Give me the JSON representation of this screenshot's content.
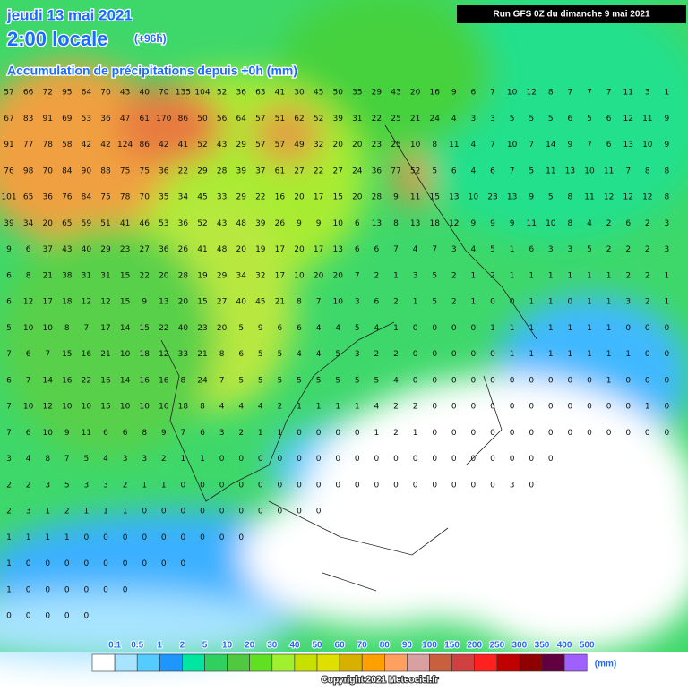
{
  "header": {
    "date": "jeudi 13 mai 2021",
    "time": "2:00 locale",
    "lead": "(+96h)",
    "subtitle": "Accumulation de précipitations depuis +0h (mm)",
    "run": "Run GFS 0Z du dimanche 9 mai 2021"
  },
  "grid_rows": [
    [
      57,
      66,
      72,
      95,
      64,
      70,
      43,
      40,
      70,
      135,
      104,
      52,
      36,
      63,
      41,
      30,
      45,
      50,
      35,
      29,
      43,
      20,
      16,
      9,
      6,
      7,
      10,
      12,
      8,
      7,
      7,
      7,
      11,
      3,
      1
    ],
    [
      67,
      83,
      91,
      69,
      53,
      36,
      47,
      61,
      170,
      86,
      50,
      56,
      64,
      57,
      51,
      62,
      52,
      39,
      31,
      22,
      25,
      21,
      24,
      4,
      3,
      3,
      5,
      5,
      5,
      6,
      5,
      6,
      12,
      11,
      9
    ],
    [
      91,
      77,
      78,
      58,
      42,
      42,
      124,
      86,
      42,
      41,
      52,
      43,
      29,
      57,
      57,
      49,
      32,
      20,
      20,
      23,
      25,
      10,
      8,
      11,
      4,
      7,
      10,
      7,
      14,
      9,
      7,
      6,
      13,
      10,
      9
    ],
    [
      76,
      98,
      70,
      84,
      90,
      88,
      75,
      75,
      36,
      22,
      29,
      28,
      39,
      37,
      61,
      27,
      22,
      27,
      24,
      36,
      77,
      52,
      5,
      6,
      4,
      6,
      7,
      5,
      11,
      13,
      10,
      11,
      7,
      8,
      8
    ],
    [
      101,
      65,
      36,
      76,
      84,
      75,
      78,
      70,
      35,
      34,
      45,
      33,
      29,
      22,
      16,
      20,
      17,
      15,
      20,
      28,
      9,
      11,
      15,
      13,
      10,
      23,
      13,
      9,
      5,
      8,
      11,
      12,
      12,
      12,
      8
    ],
    [
      39,
      34,
      20,
      65,
      59,
      51,
      41,
      46,
      53,
      36,
      52,
      43,
      48,
      39,
      26,
      9,
      9,
      10,
      6,
      13,
      8,
      13,
      18,
      12,
      9,
      9,
      9,
      11,
      10,
      8,
      4,
      2,
      6,
      2,
      3
    ],
    [
      9,
      6,
      37,
      43,
      40,
      29,
      23,
      27,
      36,
      26,
      41,
      48,
      20,
      19,
      17,
      20,
      17,
      13,
      6,
      6,
      7,
      4,
      7,
      3,
      4,
      5,
      1,
      6,
      3,
      3,
      5,
      2,
      2,
      2,
      3
    ],
    [
      6,
      8,
      21,
      38,
      31,
      31,
      15,
      22,
      20,
      28,
      19,
      29,
      34,
      32,
      17,
      10,
      20,
      20,
      7,
      2,
      1,
      3,
      5,
      2,
      1,
      2,
      1,
      1,
      1,
      1,
      1,
      1,
      2,
      2,
      1
    ],
    [
      6,
      12,
      17,
      18,
      12,
      12,
      15,
      9,
      13,
      20,
      15,
      27,
      40,
      45,
      21,
      8,
      7,
      10,
      3,
      6,
      2,
      1,
      5,
      2,
      1,
      0,
      0,
      1,
      1,
      0,
      1,
      1,
      3,
      2,
      1
    ],
    [
      5,
      10,
      10,
      8,
      7,
      17,
      14,
      15,
      22,
      40,
      23,
      20,
      5,
      9,
      6,
      6,
      4,
      4,
      5,
      4,
      1,
      0,
      0,
      0,
      0,
      1,
      1,
      1,
      1,
      1,
      1,
      1,
      0,
      0,
      0
    ],
    [
      7,
      6,
      7,
      15,
      16,
      21,
      10,
      18,
      12,
      33,
      21,
      8,
      6,
      5,
      5,
      4,
      4,
      5,
      3,
      2,
      2,
      0,
      0,
      0,
      0,
      0,
      1,
      1,
      1,
      1,
      1,
      1,
      1,
      0,
      0
    ],
    [
      6,
      7,
      14,
      16,
      22,
      16,
      14,
      16,
      16,
      8,
      24,
      7,
      5,
      5,
      5,
      5,
      5,
      5,
      5,
      5,
      4,
      0,
      0,
      0,
      0,
      0,
      0,
      0,
      0,
      0,
      0,
      1,
      0,
      0,
      0
    ],
    [
      7,
      10,
      12,
      10,
      10,
      15,
      10,
      10,
      16,
      18,
      8,
      4,
      4,
      4,
      2,
      1,
      1,
      1,
      1,
      4,
      2,
      2,
      0,
      0,
      0,
      0,
      0,
      0,
      0,
      0,
      0,
      0,
      0,
      1,
      0
    ],
    [
      7,
      6,
      10,
      9,
      11,
      6,
      6,
      8,
      9,
      7,
      6,
      3,
      2,
      1,
      1,
      0,
      0,
      0,
      0,
      1,
      2,
      1,
      0,
      0,
      0,
      0,
      0,
      0,
      0,
      0,
      0,
      0,
      0,
      0,
      0
    ],
    [
      3,
      4,
      8,
      7,
      5,
      4,
      3,
      3,
      2,
      1,
      1,
      0,
      0,
      0,
      0,
      0,
      0,
      0,
      0,
      0,
      0,
      0,
      0,
      0,
      0,
      0,
      0,
      0,
      0
    ],
    [
      2,
      2,
      3,
      5,
      3,
      3,
      2,
      1,
      1,
      0,
      0,
      0,
      0,
      0,
      0,
      0,
      0,
      0,
      0,
      0,
      0,
      0,
      0,
      0,
      0,
      0,
      3,
      0
    ],
    [
      2,
      3,
      1,
      2,
      1,
      1,
      1,
      0,
      0,
      0,
      0,
      0,
      0,
      0,
      0,
      0,
      0
    ],
    [
      1,
      1,
      1,
      1,
      0,
      0,
      0,
      0,
      0,
      0,
      0,
      0,
      0
    ],
    [
      1,
      0,
      0,
      0,
      0,
      0,
      0,
      0,
      0,
      0
    ],
    [
      1,
      0,
      0,
      0,
      0,
      0,
      0
    ],
    [
      0,
      0,
      0,
      0,
      0
    ]
  ],
  "legend": {
    "labels": [
      0.1,
      0.5,
      1,
      2,
      5,
      10,
      20,
      30,
      40,
      50,
      60,
      70,
      80,
      90,
      100,
      150,
      200,
      250,
      300,
      350,
      400,
      500
    ],
    "colors": [
      "#ffffff",
      "#a8e4ff",
      "#55ccff",
      "#1e96ff",
      "#00e6a0",
      "#30d060",
      "#50c840",
      "#60e020",
      "#a0f030",
      "#c8e000",
      "#e0e000",
      "#d8b000",
      "#ffa000",
      "#ffa060",
      "#d8a0a0",
      "#c86040",
      "#d04040",
      "#ff2020",
      "#c00000",
      "#900000",
      "#600040",
      "#a060ff"
    ],
    "unit": "(mm)"
  },
  "copyright": "Copyright 2021 Meteociel.fr"
}
